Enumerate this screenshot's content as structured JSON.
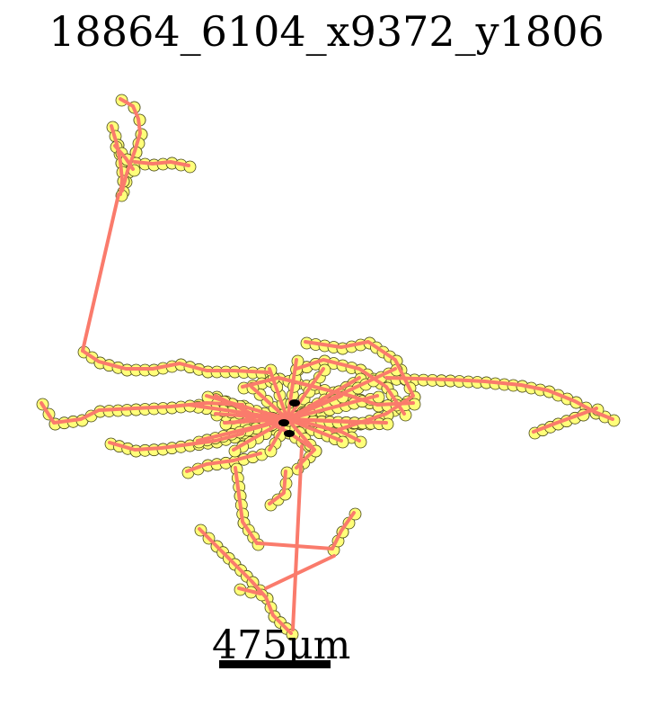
{
  "title": "18864_6104_x9372_y1806",
  "scale_bar": {
    "label": "475μm"
  },
  "colors": {
    "branch_line": "#fa7b6c",
    "node_fill": "#ffff7a",
    "node_stroke": "#4a4a1a",
    "soma": "#000000",
    "background": "#ffffff"
  }
}
